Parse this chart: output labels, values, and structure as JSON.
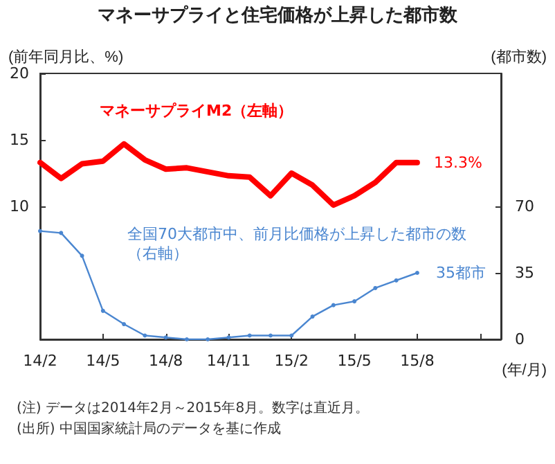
{
  "chart_data": {
    "type": "line",
    "title": "マネーサプライと住宅価格が上昇した都市数",
    "ylabel": "(前年同月比、%)",
    "y2label": "(都市数)",
    "xlabel": "(年/月)",
    "categories": [
      "14/2",
      null,
      null,
      "14/5",
      null,
      null,
      "14/8",
      null,
      null,
      "14/11",
      null,
      null,
      "15/2",
      null,
      null,
      "15/5",
      null,
      null,
      "15/8",
      null,
      null,
      null,
      null
    ],
    "series": [
      {
        "name": "マネーサプライM2（左軸）",
        "color": "#ff0000",
        "marker": "none",
        "values": [
          13.3,
          12.1,
          13.2,
          13.4,
          14.7,
          13.5,
          12.8,
          12.9,
          12.6,
          12.3,
          12.2,
          10.8,
          12.5,
          11.6,
          10.1,
          10.8,
          11.8,
          13.3,
          13.3,
          null,
          null,
          null,
          null
        ],
        "value_labels": [
          null,
          null,
          null,
          null,
          null,
          null,
          null,
          null,
          null,
          null,
          null,
          null,
          null,
          null,
          null,
          null,
          null,
          null,
          "13.3%",
          null,
          null,
          null,
          null
        ]
      },
      {
        "name": "全国70大都市中、前月比価格が上昇した都市の数（右軸）",
        "color": "#4a86d0",
        "marker": "circle",
        "axis": "y2",
        "values": [
          57,
          56,
          44,
          15,
          8,
          2,
          1,
          0,
          0,
          1,
          2,
          2,
          2,
          12,
          18,
          20,
          27,
          31,
          35,
          null,
          null,
          null,
          null
        ],
        "value_labels": [
          null,
          null,
          null,
          null,
          null,
          null,
          null,
          null,
          null,
          null,
          null,
          null,
          null,
          null,
          null,
          null,
          null,
          null,
          "35都市",
          null,
          null,
          null,
          null
        ]
      }
    ],
    "ylim": [
      0,
      20
    ],
    "yticks": [
      10,
      15,
      20
    ],
    "y2lim": [
      0,
      140
    ],
    "y2ticks": [
      0,
      35,
      70
    ],
    "grid": false,
    "annotations": [
      "(注) データは2014年2月～2015年8月。数字は直近月。",
      "(出所) 中国国家統計局のデータを基に作成"
    ]
  }
}
